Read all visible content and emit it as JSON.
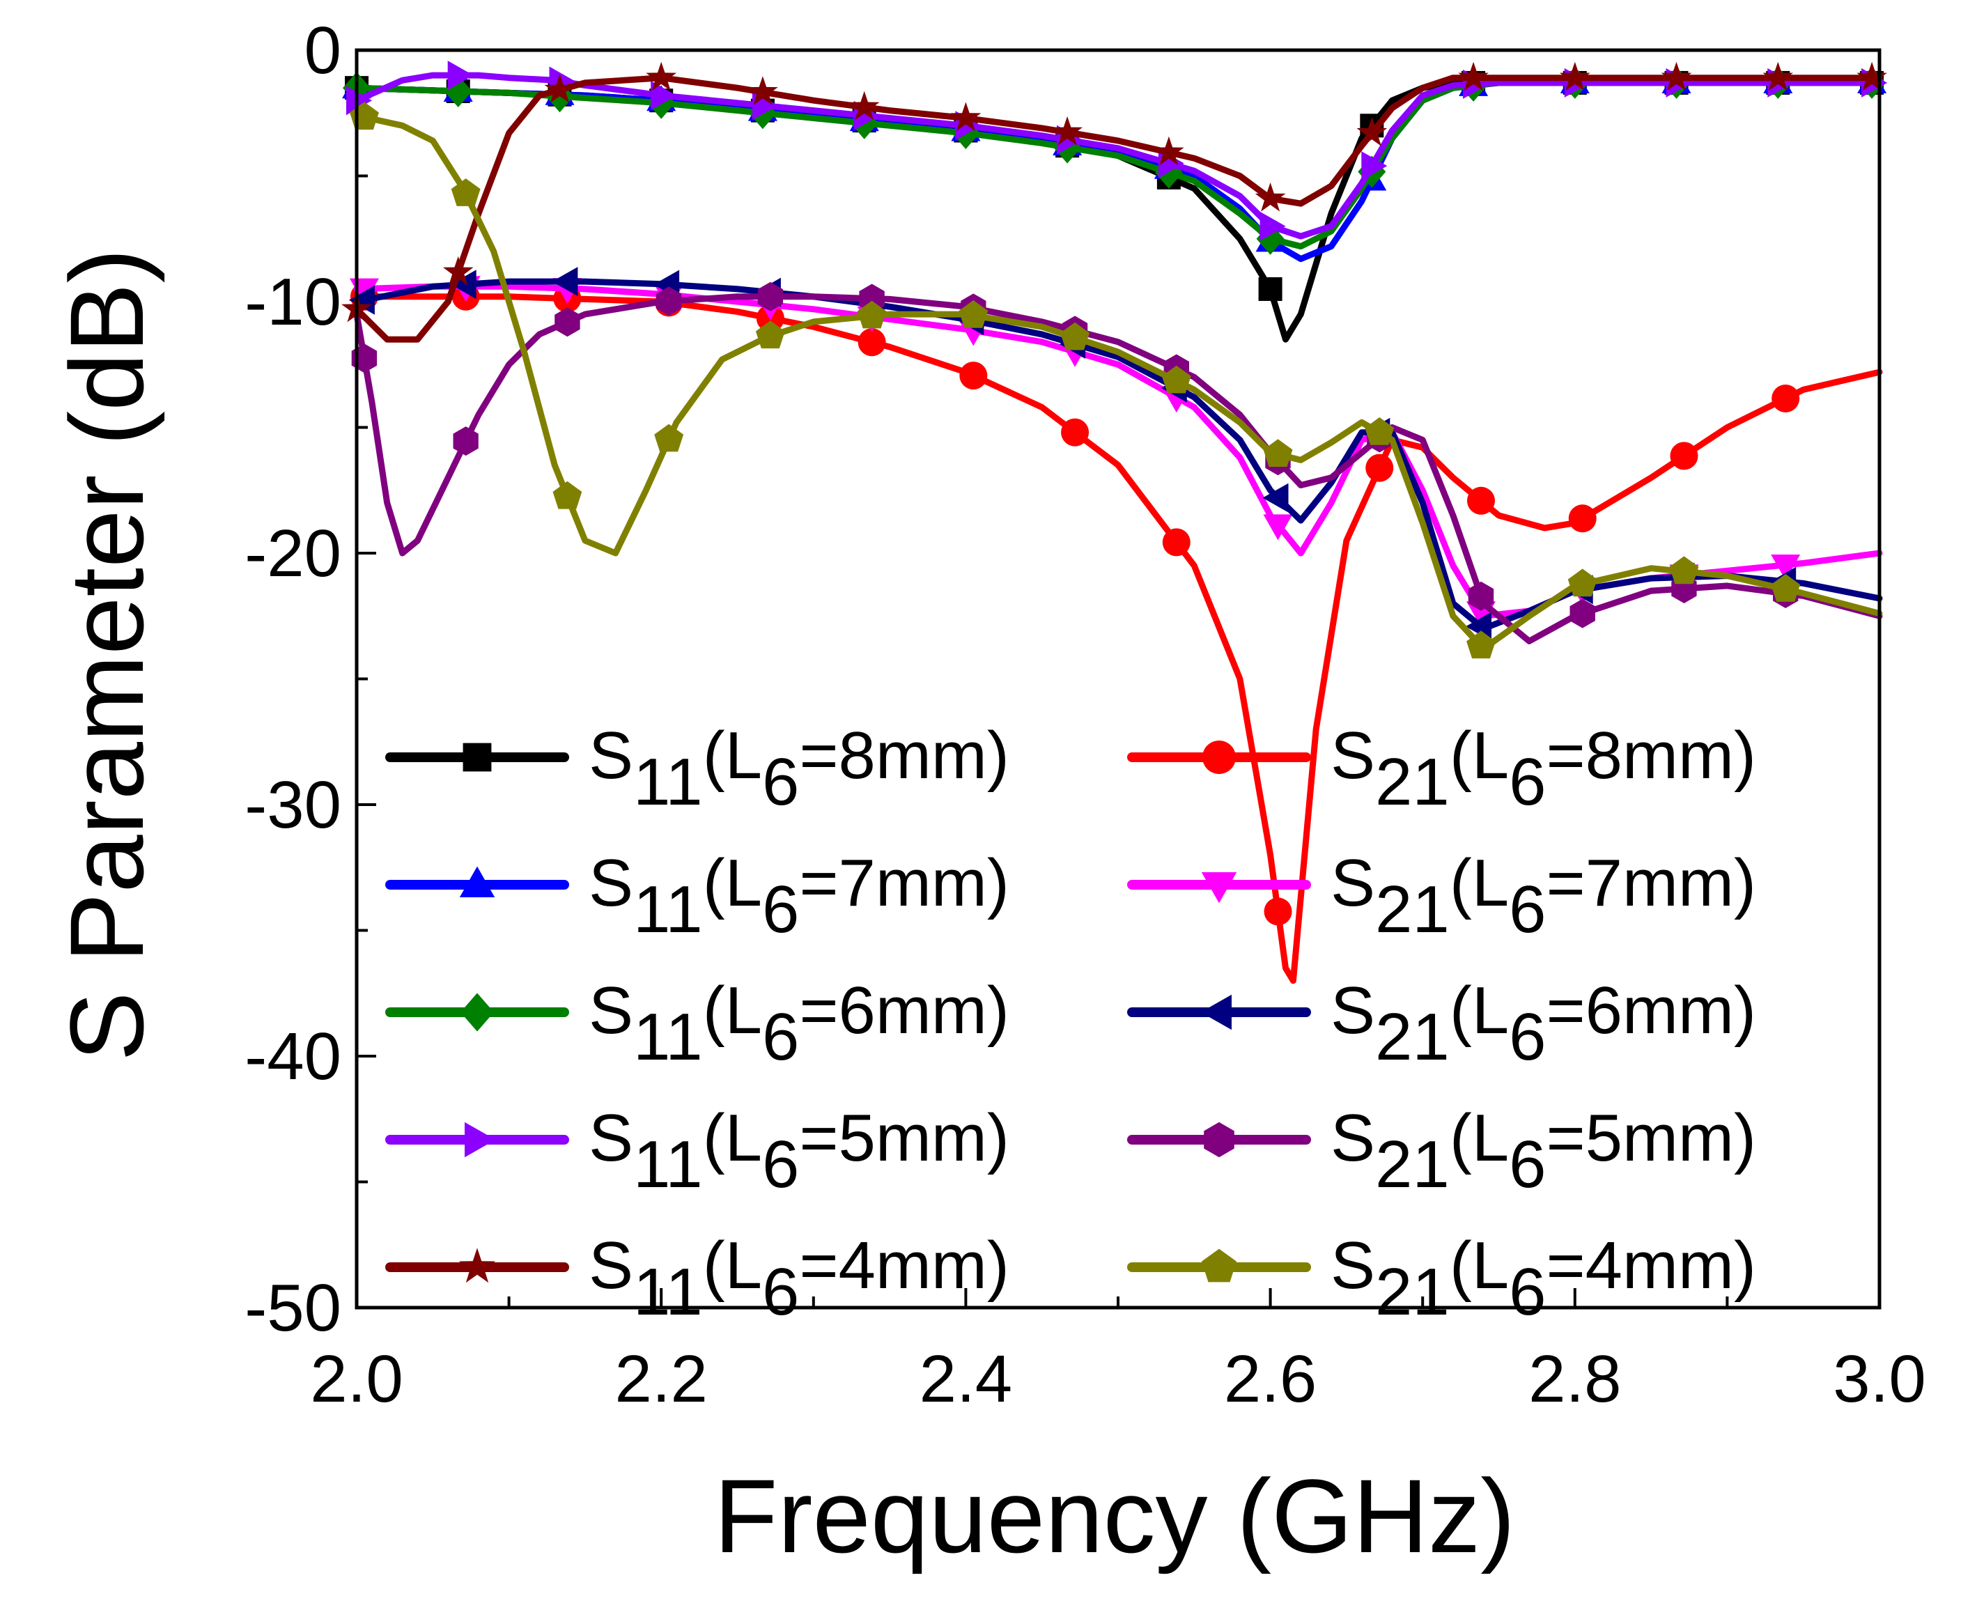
{
  "chart_data": {
    "type": "line",
    "title": "",
    "xlabel": "Frequency (GHz)",
    "ylabel": "S Parameter (dB)",
    "xlim": [
      2.0,
      3.0
    ],
    "ylim": [
      -50,
      0
    ],
    "x_ticks": [
      2.0,
      2.2,
      2.4,
      2.6,
      2.8,
      3.0
    ],
    "x_tick_labels": [
      "2.0",
      "2.2",
      "2.4",
      "2.6",
      "2.8",
      "3.0"
    ],
    "y_ticks": [
      0,
      -10,
      -20,
      -30,
      -40,
      -50
    ],
    "y_tick_labels": [
      "0",
      "-10",
      "-20",
      "-30",
      "-40",
      "-50"
    ],
    "legend_position": "lower-left",
    "series": [
      {
        "name": "S11(L6=8mm)",
        "param": "S",
        "sub": "11",
        "L": "L",
        "Lsub": "6",
        "value": "=8mm)",
        "color": "#000000",
        "marker": "square",
        "x": [
          2.0,
          2.05,
          2.1,
          2.15,
          2.2,
          2.25,
          2.3,
          2.35,
          2.4,
          2.45,
          2.5,
          2.55,
          2.58,
          2.6,
          2.61,
          2.62,
          2.64,
          2.66,
          2.68,
          2.7,
          2.72,
          2.75,
          2.8,
          2.85,
          2.9,
          2.95,
          3.0
        ],
        "y": [
          -1.5,
          -1.6,
          -1.7,
          -1.8,
          -2.0,
          -2.3,
          -2.6,
          -2.9,
          -3.2,
          -3.6,
          -4.2,
          -5.5,
          -7.5,
          -9.5,
          -11.5,
          -10.5,
          -6.5,
          -3.5,
          -2.0,
          -1.5,
          -1.3,
          -1.3,
          -1.3,
          -1.3,
          -1.3,
          -1.3,
          -1.3
        ]
      },
      {
        "name": "S21(L6=8mm)",
        "param": "S",
        "sub": "21",
        "L": "L",
        "Lsub": "6",
        "value": "=8mm)",
        "color": "#ff0000",
        "marker": "circle",
        "x": [
          2.0,
          2.05,
          2.1,
          2.15,
          2.2,
          2.25,
          2.3,
          2.35,
          2.4,
          2.45,
          2.5,
          2.55,
          2.58,
          2.6,
          2.61,
          2.615,
          2.63,
          2.65,
          2.68,
          2.7,
          2.72,
          2.75,
          2.78,
          2.8,
          2.85,
          2.9,
          2.95,
          3.0
        ],
        "y": [
          -9.8,
          -9.8,
          -9.8,
          -9.9,
          -10.0,
          -10.4,
          -11.0,
          -11.8,
          -12.8,
          -14.2,
          -16.5,
          -20.5,
          -25.0,
          -32.0,
          -36.5,
          -37.0,
          -27.0,
          -19.5,
          -15.5,
          -15.8,
          -17.0,
          -18.5,
          -19.0,
          -18.8,
          -17.0,
          -15.0,
          -13.5,
          -12.8
        ]
      },
      {
        "name": "S11(L6=7mm)",
        "param": "S",
        "sub": "11",
        "L": "L",
        "Lsub": "6",
        "value": "=7mm)",
        "color": "#0000ff",
        "marker": "triangle-up",
        "x": [
          2.0,
          2.05,
          2.1,
          2.15,
          2.2,
          2.25,
          2.3,
          2.35,
          2.4,
          2.45,
          2.5,
          2.55,
          2.58,
          2.6,
          2.62,
          2.64,
          2.66,
          2.68,
          2.7,
          2.72,
          2.75,
          2.8,
          2.85,
          2.9,
          2.95,
          3.0
        ],
        "y": [
          -1.5,
          -1.6,
          -1.7,
          -1.8,
          -2.0,
          -2.3,
          -2.6,
          -2.9,
          -3.2,
          -3.6,
          -4.1,
          -5.0,
          -6.3,
          -7.6,
          -8.3,
          -7.8,
          -6.0,
          -3.5,
          -2.0,
          -1.5,
          -1.3,
          -1.3,
          -1.3,
          -1.3,
          -1.3,
          -1.3
        ]
      },
      {
        "name": "S21(L6=7mm)",
        "param": "S",
        "sub": "21",
        "L": "L",
        "Lsub": "6",
        "value": "=7mm)",
        "color": "#ff00ff",
        "marker": "triangle-down",
        "x": [
          2.0,
          2.05,
          2.1,
          2.15,
          2.2,
          2.25,
          2.3,
          2.35,
          2.4,
          2.45,
          2.5,
          2.55,
          2.58,
          2.6,
          2.62,
          2.64,
          2.66,
          2.68,
          2.7,
          2.72,
          2.74,
          2.77,
          2.8,
          2.85,
          2.9,
          2.95,
          3.0
        ],
        "y": [
          -9.5,
          -9.4,
          -9.4,
          -9.5,
          -9.7,
          -10.0,
          -10.3,
          -10.7,
          -11.1,
          -11.6,
          -12.5,
          -14.2,
          -16.2,
          -18.5,
          -20.0,
          -18.0,
          -15.5,
          -15.2,
          -17.5,
          -20.5,
          -22.5,
          -22.3,
          -21.5,
          -21.0,
          -20.7,
          -20.4,
          -20.0
        ]
      },
      {
        "name": "S11(L6=6mm)",
        "param": "S",
        "sub": "11",
        "L": "L",
        "Lsub": "6",
        "value": "=6mm)",
        "color": "#008000",
        "marker": "diamond",
        "x": [
          2.0,
          2.05,
          2.1,
          2.15,
          2.2,
          2.25,
          2.3,
          2.35,
          2.4,
          2.45,
          2.5,
          2.55,
          2.58,
          2.6,
          2.62,
          2.64,
          2.66,
          2.68,
          2.7,
          2.72,
          2.75,
          2.8,
          2.85,
          2.9,
          2.95,
          3.0
        ],
        "y": [
          -1.5,
          -1.6,
          -1.7,
          -1.9,
          -2.1,
          -2.4,
          -2.7,
          -3.0,
          -3.3,
          -3.7,
          -4.2,
          -5.2,
          -6.5,
          -7.5,
          -7.8,
          -7.2,
          -5.5,
          -3.5,
          -2.0,
          -1.5,
          -1.3,
          -1.3,
          -1.3,
          -1.3,
          -1.3,
          -1.3
        ]
      },
      {
        "name": "S21(L6=6mm)",
        "param": "S",
        "sub": "21",
        "L": "L",
        "Lsub": "6",
        "value": "=6mm)",
        "color": "#000080",
        "marker": "triangle-left",
        "x": [
          2.0,
          2.05,
          2.1,
          2.15,
          2.2,
          2.25,
          2.3,
          2.35,
          2.4,
          2.45,
          2.5,
          2.55,
          2.58,
          2.6,
          2.62,
          2.64,
          2.66,
          2.68,
          2.7,
          2.72,
          2.74,
          2.77,
          2.8,
          2.85,
          2.9,
          2.95,
          3.0
        ],
        "y": [
          -10.0,
          -9.4,
          -9.2,
          -9.2,
          -9.3,
          -9.5,
          -9.8,
          -10.2,
          -10.7,
          -11.3,
          -12.2,
          -13.8,
          -15.5,
          -17.5,
          -18.7,
          -17.2,
          -15.2,
          -15.2,
          -18.0,
          -22.0,
          -23.0,
          -22.3,
          -21.5,
          -21.0,
          -20.9,
          -21.2,
          -21.8
        ]
      },
      {
        "name": "S11(L6=5mm)",
        "param": "S",
        "sub": "11",
        "L": "L",
        "Lsub": "6",
        "value": "=5mm)",
        "color": "#8b00ff",
        "marker": "triangle-right",
        "x": [
          2.0,
          2.03,
          2.05,
          2.08,
          2.1,
          2.13,
          2.15,
          2.2,
          2.25,
          2.3,
          2.35,
          2.4,
          2.45,
          2.5,
          2.55,
          2.58,
          2.6,
          2.62,
          2.64,
          2.66,
          2.68,
          2.7,
          2.72,
          2.75,
          2.8,
          2.85,
          2.9,
          2.95,
          3.0
        ],
        "y": [
          -2.0,
          -1.2,
          -1.0,
          -1.0,
          -1.1,
          -1.2,
          -1.4,
          -1.8,
          -2.1,
          -2.4,
          -2.7,
          -3.0,
          -3.4,
          -3.9,
          -4.8,
          -5.8,
          -7.0,
          -7.4,
          -7.0,
          -5.3,
          -3.2,
          -1.8,
          -1.4,
          -1.3,
          -1.3,
          -1.3,
          -1.3,
          -1.3,
          -1.3
        ]
      },
      {
        "name": "S21(L6=5mm)",
        "param": "S",
        "sub": "21",
        "L": "L",
        "Lsub": "6",
        "value": "=5mm)",
        "color": "#800080",
        "marker": "hexagon",
        "x": [
          2.0,
          2.01,
          2.02,
          2.03,
          2.04,
          2.06,
          2.08,
          2.1,
          2.12,
          2.15,
          2.2,
          2.25,
          2.3,
          2.35,
          2.4,
          2.45,
          2.5,
          2.55,
          2.58,
          2.6,
          2.62,
          2.64,
          2.66,
          2.68,
          2.7,
          2.72,
          2.74,
          2.77,
          2.8,
          2.85,
          2.9,
          2.95,
          3.0
        ],
        "y": [
          -10.5,
          -14.0,
          -18.0,
          -20.0,
          -19.5,
          -17.0,
          -14.5,
          -12.5,
          -11.3,
          -10.5,
          -10.0,
          -9.8,
          -9.8,
          -9.9,
          -10.2,
          -10.8,
          -11.6,
          -13.0,
          -14.5,
          -16.0,
          -17.3,
          -17.0,
          -16.0,
          -15.0,
          -15.5,
          -18.5,
          -22.0,
          -23.5,
          -22.5,
          -21.5,
          -21.3,
          -21.7,
          -22.5
        ]
      },
      {
        "name": "S11(L6=4mm)",
        "param": "S",
        "sub": "11",
        "L": "L",
        "Lsub": "6",
        "value": "=4mm)",
        "color": "#800000",
        "marker": "star",
        "x": [
          2.0,
          2.02,
          2.04,
          2.06,
          2.08,
          2.1,
          2.12,
          2.15,
          2.2,
          2.25,
          2.3,
          2.35,
          2.4,
          2.45,
          2.5,
          2.55,
          2.58,
          2.6,
          2.62,
          2.64,
          2.66,
          2.68,
          2.7,
          2.72,
          2.75,
          2.8,
          2.85,
          2.9,
          2.95,
          3.0
        ],
        "y": [
          -10.3,
          -11.5,
          -11.5,
          -10.0,
          -6.5,
          -3.3,
          -1.8,
          -1.3,
          -1.1,
          -1.5,
          -2.0,
          -2.4,
          -2.7,
          -3.1,
          -3.6,
          -4.3,
          -5.0,
          -5.9,
          -6.1,
          -5.4,
          -3.8,
          -2.3,
          -1.5,
          -1.1,
          -1.1,
          -1.1,
          -1.1,
          -1.1,
          -1.1,
          -1.1
        ]
      },
      {
        "name": "S21(L6=4mm)",
        "param": "S",
        "sub": "21",
        "L": "L",
        "Lsub": "6",
        "value": "=4mm)",
        "color": "#808000",
        "marker": "pentagon",
        "x": [
          2.0,
          2.03,
          2.05,
          2.07,
          2.09,
          2.11,
          2.13,
          2.15,
          2.17,
          2.19,
          2.21,
          2.24,
          2.27,
          2.3,
          2.35,
          2.4,
          2.45,
          2.5,
          2.55,
          2.58,
          2.6,
          2.62,
          2.64,
          2.66,
          2.68,
          2.7,
          2.72,
          2.74,
          2.77,
          2.8,
          2.85,
          2.9,
          2.95,
          3.0
        ],
        "y": [
          -2.6,
          -3.0,
          -3.6,
          -5.5,
          -8.0,
          -12.0,
          -16.5,
          -19.5,
          -20.0,
          -17.5,
          -14.8,
          -12.3,
          -11.4,
          -10.8,
          -10.5,
          -10.5,
          -11.0,
          -12.0,
          -13.5,
          -14.8,
          -16.0,
          -16.3,
          -15.6,
          -14.8,
          -15.5,
          -18.8,
          -22.5,
          -23.8,
          -22.5,
          -21.3,
          -20.6,
          -20.9,
          -21.6,
          -22.4
        ]
      }
    ]
  }
}
